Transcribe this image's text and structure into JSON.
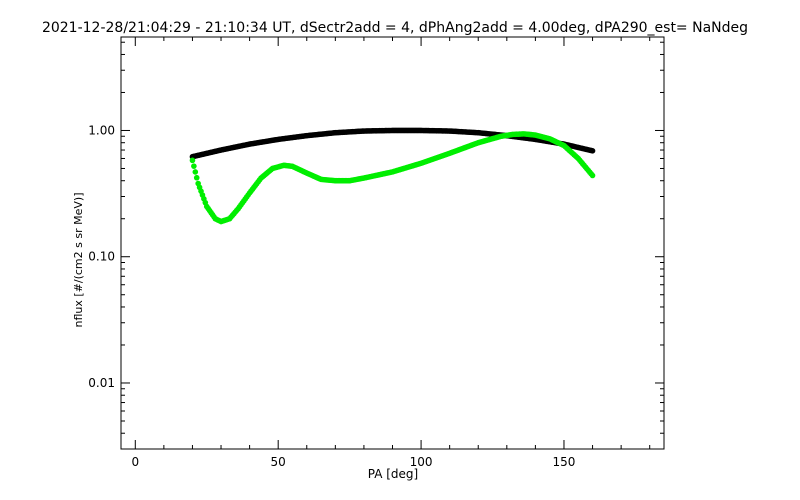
{
  "chart_data": {
    "type": "scatter",
    "title": "2021-12-28/21:04:29 - 21:10:34 UT, dSectr2add = 4, dPhAng2add = 4.00deg, dPA290_est=    NaNdeg",
    "xlabel": "PA [deg]",
    "ylabel": "nflux [#/(cm2 s sr MeV)]",
    "xlim": [
      -5,
      185
    ],
    "ylim": [
      0.003,
      5.5
    ],
    "yscale": "log",
    "grid": false,
    "xticks": [
      {
        "value": 0,
        "label": "0"
      },
      {
        "value": 50,
        "label": "50"
      },
      {
        "value": 100,
        "label": "100"
      },
      {
        "value": 150,
        "label": "150"
      }
    ],
    "yticks": [
      {
        "value": 0.01,
        "label": "0.01"
      },
      {
        "value": 0.1,
        "label": "0.10"
      },
      {
        "value": 1,
        "label": "1.00"
      }
    ],
    "series": [
      {
        "color": "#000000",
        "x": [
          20,
          30,
          40,
          50,
          60,
          70,
          80,
          90,
          100,
          110,
          120,
          130,
          140,
          150,
          160
        ],
        "y": [
          0.62,
          0.7,
          0.78,
          0.85,
          0.91,
          0.96,
          0.99,
          1.0,
          1.0,
          0.99,
          0.96,
          0.91,
          0.85,
          0.78,
          0.69
        ]
      },
      {
        "color": "#00ee00",
        "x": [
          20,
          22,
          25,
          28,
          30,
          33,
          36,
          40,
          44,
          48,
          52,
          55,
          60,
          65,
          70,
          75,
          80,
          90,
          100,
          110,
          120,
          128,
          132,
          136,
          140,
          145,
          150,
          155,
          160
        ],
        "y": [
          0.58,
          0.38,
          0.25,
          0.2,
          0.19,
          0.2,
          0.24,
          0.32,
          0.42,
          0.5,
          0.53,
          0.52,
          0.46,
          0.41,
          0.4,
          0.4,
          0.42,
          0.47,
          0.55,
          0.66,
          0.8,
          0.9,
          0.93,
          0.94,
          0.92,
          0.86,
          0.76,
          0.6,
          0.44
        ]
      }
    ]
  }
}
